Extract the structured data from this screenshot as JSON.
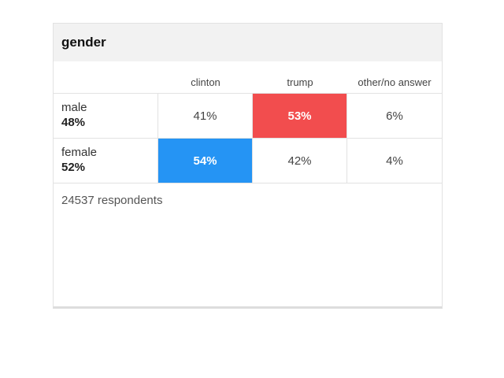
{
  "card": {
    "title": "gender",
    "columns": [
      "clinton",
      "trump",
      "other/no answer"
    ],
    "rows": [
      {
        "name": "male",
        "share": "48%",
        "values": [
          "41%",
          "53%",
          "6%"
        ],
        "winner": "trump"
      },
      {
        "name": "female",
        "share": "52%",
        "values": [
          "54%",
          "42%",
          "4%"
        ],
        "winner": "clinton"
      }
    ],
    "respondents": "24537 respondents"
  },
  "colors": {
    "clinton_win": "#2594f4",
    "trump_win": "#f24d4e",
    "header_bg": "#f2f2f2"
  }
}
